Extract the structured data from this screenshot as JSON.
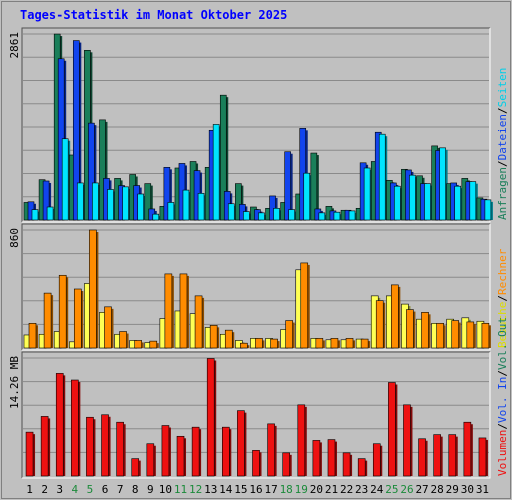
{
  "title": "Tages-Statistik im Monat Oktober 2025",
  "chart_data": {
    "type": "bar",
    "title": "Tages-Statistik im Monat Oktober 2025",
    "categories": [
      "1",
      "2",
      "3",
      "4",
      "5",
      "6",
      "7",
      "8",
      "9",
      "10",
      "11",
      "12",
      "13",
      "14",
      "15",
      "16",
      "17",
      "18",
      "19",
      "20",
      "21",
      "22",
      "23",
      "24",
      "25",
      "26",
      "27",
      "28",
      "29",
      "30",
      "31"
    ],
    "weekend_days": [
      "4",
      "5",
      "11",
      "12",
      "18",
      "19",
      "25",
      "26"
    ],
    "colors": {
      "anfragen": "#1a7f5a",
      "dateien": "#1144ee",
      "seiten": "#00e5ff",
      "besuche": "#ffff55",
      "rechner": "#ff8c00",
      "volumen": "#ee1111",
      "day_weekday": "#000000",
      "day_weekend": "#1b8a3a"
    },
    "panels": [
      {
        "id": "requests",
        "ymax_label": "2861",
        "ymax": 2861,
        "side_labels": [
          {
            "text": "Anfragen",
            "color": "#1a7f5a"
          },
          {
            "text": "Dateien",
            "color": "#1144ee"
          },
          {
            "text": "Seiten",
            "color": "#00cfe8"
          }
        ],
        "series": [
          {
            "name": "Anfragen",
            "color": "#1a7f5a",
            "values": [
              270,
              620,
              2860,
              1000,
              2610,
              1540,
              640,
              700,
              560,
              210,
              800,
              900,
              810,
              1920,
              560,
              200,
              180,
              270,
              400,
              1030,
              210,
              150,
              180,
              900,
              610,
              780,
              680,
              1140,
              560,
              640,
              340
            ]
          },
          {
            "name": "Dateien",
            "color": "#1144ee",
            "values": [
              280,
              600,
              2480,
              2760,
              1490,
              640,
              530,
              530,
              170,
              810,
              870,
              760,
              1380,
              440,
              240,
              160,
              370,
              1050,
              1410,
              170,
              140,
              150,
              880,
              1350,
              570,
              770,
              560,
              1070,
              570,
              590,
              320
            ]
          },
          {
            "name": "Seiten",
            "color": "#00e5ff",
            "values": [
              160,
              200,
              1250,
              570,
              570,
              470,
              510,
              400,
              90,
              270,
              460,
              410,
              1470,
              250,
              130,
              110,
              180,
              160,
              720,
              110,
              120,
              140,
              800,
              1320,
              520,
              690,
              560,
              1110,
              520,
              590,
              310
            ]
          }
        ]
      },
      {
        "id": "visits",
        "ymax_label": "860",
        "ymax": 860,
        "side_labels": [
          {
            "text": "Besuche",
            "color": "#dddd00"
          },
          {
            "text": "Rechner",
            "color": "#ff8c00"
          }
        ],
        "series": [
          {
            "name": "Besuche",
            "color": "#ffff55",
            "values": [
              95,
              100,
              120,
              45,
              470,
              260,
              100,
              55,
              40,
              215,
              270,
              250,
              150,
              100,
              55,
              70,
              70,
              135,
              570,
              70,
              60,
              60,
              65,
              380,
              380,
              320,
              210,
              180,
              210,
              220,
              195
            ]
          },
          {
            "name": "Rechner",
            "color": "#ff8c00",
            "values": [
              180,
              400,
              530,
              430,
              860,
              300,
              120,
              55,
              50,
              540,
              540,
              380,
              165,
              130,
              35,
              70,
              65,
              200,
              620,
              70,
              70,
              70,
              65,
              345,
              460,
              280,
              260,
              180,
              200,
              190,
              180
            ]
          }
        ]
      },
      {
        "id": "volume",
        "ymax_label": "14.26 MB",
        "ymax": 14.26,
        "side_labels": [
          {
            "text": "Volumen",
            "color": "#ee1111"
          },
          {
            "text": "Vol. In",
            "color": "#1144ee"
          },
          {
            "text": "Vol. Out",
            "color": "#1a7f5a"
          }
        ],
        "series": [
          {
            "name": "Volumen",
            "color": "#ee1111",
            "values": [
              5.3,
              7.2,
              12.4,
              11.6,
              7.1,
              7.4,
              6.5,
              2.1,
              3.9,
              6.1,
              4.8,
              5.9,
              14.2,
              5.9,
              7.9,
              3.1,
              6.3,
              2.8,
              8.6,
              4.3,
              4.4,
              2.8,
              2.1,
              3.9,
              11.3,
              8.6,
              4.5,
              5.0,
              5.0,
              6.5,
              4.6
            ]
          }
        ]
      }
    ]
  }
}
